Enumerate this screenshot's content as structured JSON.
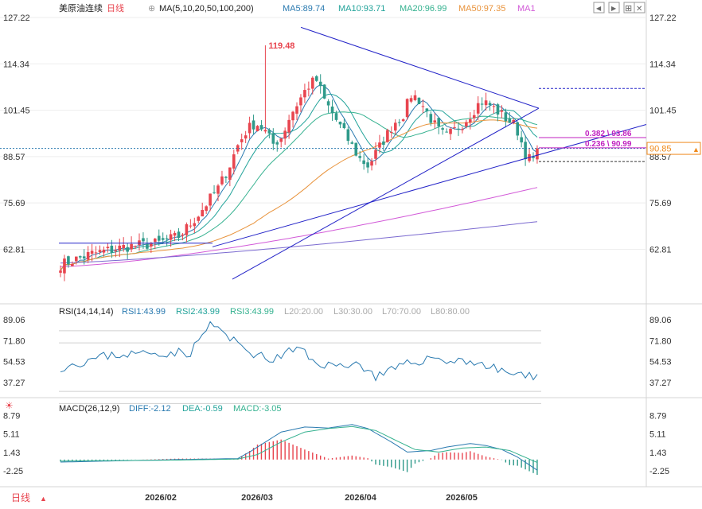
{
  "header": {
    "symbol": "美原油连续",
    "period": "日线",
    "ma_config": "MA(5,10,20,50,100,200)",
    "ma5": "MA5:89.74",
    "ma10": "MA10:93.71",
    "ma20": "MA20:96.99",
    "ma50": "MA50:97.35",
    "ma1": "MA1"
  },
  "window_controls": {
    "prev_label": "◀",
    "next_label": "▶",
    "expand_label": "⊞",
    "close_label": "✕"
  },
  "rsi_header": {
    "config": "RSI(14,14,14)",
    "rsi1": "RSI1:43.99",
    "rsi2": "RSI2:43.99",
    "rsi3": "RSI3:43.99",
    "l20": "L20:20.00",
    "l30": "L30:30.00",
    "l70": "L70:70.00",
    "l80": "L80:80.00"
  },
  "macd_header": {
    "config": "MACD(26,12,9)",
    "diff": "DIFF:-2.12",
    "dea": "DEA:-0.59",
    "macd": "MACD:-3.05"
  },
  "bottom_bar": {
    "period_button": "日线"
  },
  "colors": {
    "up": "#e8454f",
    "down": "#2f9a8a",
    "ma5": "#2a7ab0",
    "ma10": "#22a39a",
    "ma20": "#34b18f",
    "ma50": "#e8923a",
    "ma100": "#d25ad8",
    "ma200": "#7b6ad0",
    "trend": "#2424c8",
    "fib": "#c021c0",
    "last_price": "#ef8a1c"
  },
  "chart_data": [
    {
      "type": "candlestick",
      "panel": "price",
      "y_ticks": [
        "127.22",
        "114.34",
        "101.45",
        "88.57",
        "75.69",
        "62.81"
      ],
      "ylim": [
        56.5,
        130.0
      ],
      "x_ticks": [
        "2026/02",
        "2026/03",
        "2026/04",
        "2026/05"
      ],
      "high_annotation": "119.48",
      "last_price": "90.85",
      "fib_levels": [
        {
          "label": "0.382 \\ 93.86",
          "value": 93.86
        },
        {
          "label": "0.236 \\ 90.99",
          "value": 90.99
        }
      ],
      "ma_last": {
        "MA5": 89.74,
        "MA10": 93.71,
        "MA20": 96.99,
        "MA50": 97.35
      }
    },
    {
      "type": "line",
      "panel": "rsi",
      "y_ticks": [
        "89.06",
        "71.80",
        "54.53",
        "37.27"
      ],
      "ylim": [
        20,
        100
      ],
      "reference_levels": [
        80,
        70,
        30,
        20
      ],
      "last": 43.99
    },
    {
      "type": "bar+line",
      "panel": "macd",
      "y_ticks": [
        "8.79",
        "5.11",
        "1.43",
        "-2.25"
      ],
      "ylim": [
        -5.5,
        10.5
      ],
      "last": {
        "DIFF": -2.12,
        "DEA": -0.59,
        "MACD": -3.05
      }
    }
  ]
}
